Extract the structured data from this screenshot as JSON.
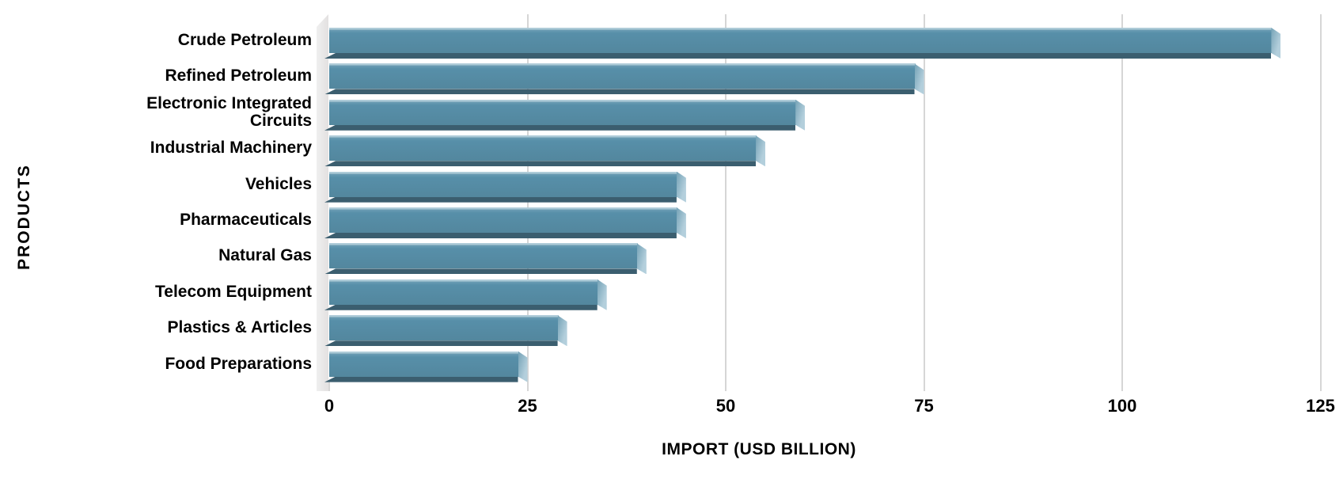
{
  "chart_data": {
    "type": "bar",
    "orientation": "horizontal",
    "categories": [
      "Crude Petroleum",
      "Refined Petroleum",
      "Electronic Integrated Circuits",
      "Industrial Machinery",
      "Vehicles",
      "Pharmaceuticals",
      "Natural Gas",
      "Telecom Equipment",
      "Plastics & Articles",
      "Food Preparations"
    ],
    "values": [
      120,
      75,
      60,
      55,
      45,
      45,
      40,
      35,
      30,
      25
    ],
    "title": "",
    "xlabel": "IMPORT (USD BILLION)",
    "ylabel": "PRODUCTS",
    "xlim": [
      0,
      125
    ],
    "xticks": [
      0,
      25,
      50,
      75,
      100,
      125
    ],
    "grid": "vertical",
    "legend": "none",
    "colors": {
      "bar": "#578fa9",
      "bar_highlight": "#aecbd8",
      "bar_shadow": "#3b5e6f",
      "bevel_light": "#b3cfdc",
      "bevel_dark": "#74a2b6",
      "gridline": "#d6d6d6",
      "wall": "#efefef",
      "text": "#000000",
      "background": "#ffffff"
    }
  }
}
